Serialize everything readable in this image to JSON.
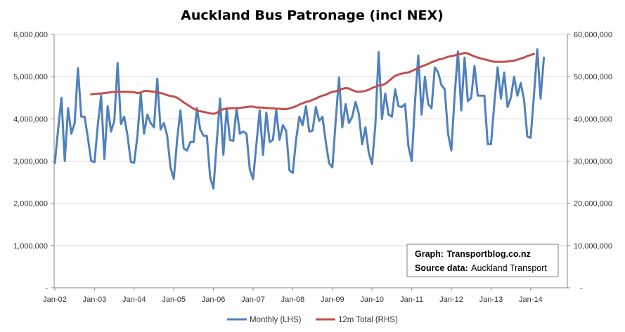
{
  "chart_data": {
    "type": "line",
    "title": "Auckland Bus Patronage (incl NEX)",
    "x_start": "2002-01",
    "x_end": "2014-05",
    "x_tick_labels": [
      "Jan-02",
      "Jan-03",
      "Jan-04",
      "Jan-05",
      "Jan-06",
      "Jan-07",
      "Jan-08",
      "Jan-09",
      "Jan-10",
      "Jan-11",
      "Jan-12",
      "Jan-13",
      "Jan-14"
    ],
    "y_left": {
      "min": 0,
      "max": 6000000,
      "ticks": [
        "-",
        "1,000,000",
        "2,000,000",
        "3,000,000",
        "4,000,000",
        "5,000,000",
        "6,000,000"
      ]
    },
    "y_right": {
      "min": 0,
      "max": 60000000,
      "ticks": [
        "-",
        "10,000,000",
        "20,000,000",
        "30,000,000",
        "40,000,000",
        "50,000,000",
        "60,000,000"
      ]
    },
    "gridlines": true,
    "legend_position": "bottom",
    "series": [
      {
        "name": "Monthly (LHS)",
        "axis": "left",
        "color": "#4f81bd",
        "values": [
          2950000,
          3750000,
          4500000,
          3000000,
          4250000,
          3650000,
          3900000,
          5200000,
          4050000,
          4050000,
          3550000,
          3000000,
          2980000,
          3850000,
          4550000,
          3050000,
          4300000,
          3700000,
          3950000,
          5320000,
          3880000,
          4050000,
          3600000,
          2980000,
          2960000,
          3600000,
          4600000,
          3650000,
          4100000,
          3900000,
          3800000,
          4950000,
          3750000,
          3900000,
          3600000,
          2850000,
          2580000,
          3500000,
          4200000,
          3300000,
          3250000,
          3450000,
          3450000,
          4250000,
          3750000,
          3600000,
          3600000,
          2620000,
          2350000,
          3450000,
          4480000,
          3150000,
          4250000,
          3500000,
          3480000,
          4250000,
          3650000,
          3700000,
          3650000,
          2800000,
          2570000,
          3400000,
          4200000,
          3150000,
          4150000,
          3450000,
          3500000,
          4200000,
          3500000,
          3850000,
          3720000,
          2780000,
          2720000,
          3500000,
          4050000,
          3850000,
          4300000,
          3700000,
          3720000,
          4280000,
          3950000,
          4050000,
          3450000,
          2950000,
          2850000,
          3950000,
          4980000,
          3800000,
          4350000,
          3900000,
          4050000,
          4400000,
          4120000,
          3400000,
          3800000,
          3200000,
          2930000,
          3850000,
          5580000,
          4000000,
          4600000,
          4100000,
          4050000,
          4700000,
          4300000,
          4280000,
          4350000,
          3350000,
          3000000,
          4400000,
          5500000,
          4100000,
          5000000,
          4350000,
          4250000,
          5220000,
          5100000,
          4800000,
          4700000,
          3650000,
          3250000,
          4550000,
          5600000,
          4200000,
          5450000,
          4420000,
          4500000,
          5250000,
          4550000,
          4550000,
          4550000,
          3400000,
          3400000,
          4350000,
          5220000,
          4480000,
          5100000,
          4280000,
          4500000,
          5000000,
          4550000,
          4850000,
          4450000,
          3580000,
          3550000,
          4550000,
          5650000,
          4480000,
          5450000
        ]
      },
      {
        "name": "12m Total (RHS)",
        "axis": "right",
        "color": "#c0504d",
        "start": "2002-12",
        "values": [
          45800000,
          45900000,
          45950000,
          46000000,
          46100000,
          46200000,
          46300000,
          46350000,
          46400000,
          46400000,
          46400000,
          46400000,
          46350000,
          46300000,
          46100000,
          46200000,
          46600000,
          46600000,
          46500000,
          46400000,
          46300000,
          46100000,
          45900000,
          45600000,
          45400000,
          45300000,
          45000000,
          44500000,
          43900000,
          43400000,
          42900000,
          42400000,
          42000000,
          41800000,
          41650000,
          41500000,
          41300000,
          41200000,
          41400000,
          42000000,
          42300000,
          42400000,
          42500000,
          42500000,
          42550000,
          42600000,
          42700000,
          42800000,
          42900000,
          42900000,
          42700000,
          42700000,
          42650000,
          42600000,
          42500000,
          42500000,
          42400000,
          42400000,
          42300000,
          42300000,
          42500000,
          42700000,
          43000000,
          43400000,
          43700000,
          44000000,
          44200000,
          44500000,
          44800000,
          45200000,
          45500000,
          45700000,
          46100000,
          46400000,
          46500000,
          46800000,
          47100000,
          47300000,
          47200000,
          46800000,
          46500000,
          46400000,
          46500000,
          46600000,
          46900000,
          47300000,
          47600000,
          47900000,
          48000000,
          48300000,
          48900000,
          49600000,
          50200000,
          50500000,
          50700000,
          50900000,
          51000000,
          51300000,
          51700000,
          52000000,
          52400000,
          52700000,
          53000000,
          53400000,
          53700000,
          54000000,
          54200000,
          54400000,
          54700000,
          54900000,
          55000000,
          55300000,
          55400000,
          55600000,
          55500000,
          55100000,
          54800000,
          54500000,
          54300000,
          54100000,
          53900000,
          53700000,
          53500000,
          53500000,
          53500000,
          53500000,
          53600000,
          53700000,
          53800000,
          54000000,
          54300000,
          54500000,
          54900000,
          55100000,
          55400000
        ]
      }
    ]
  },
  "note": {
    "line1_label": "Graph:",
    "line1_value": "Transportblog.co.nz",
    "line2_label": "Source data:",
    "line2_value": "Auckland Transport"
  }
}
